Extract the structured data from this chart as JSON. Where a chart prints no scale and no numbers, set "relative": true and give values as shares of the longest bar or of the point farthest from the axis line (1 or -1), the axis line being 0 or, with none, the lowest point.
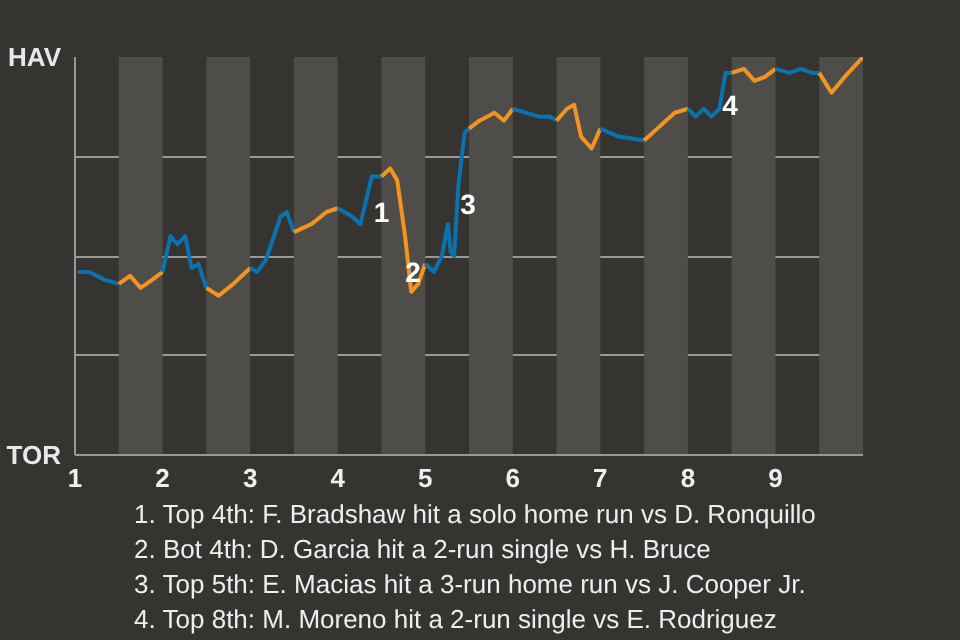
{
  "chart_data": {
    "type": "line",
    "relative": true,
    "xlim": [
      1,
      10
    ],
    "xticks": [
      1,
      2,
      3,
      4,
      5,
      6,
      7,
      8,
      9
    ],
    "grid": "y",
    "marker": "none",
    "line_style": "solid",
    "series": [
      {
        "color": "#0b72b0",
        "x": [
          1.03,
          1.16,
          1.34,
          1.5
        ],
        "values": [
          0.46,
          0.46,
          0.44,
          0.43
        ]
      },
      {
        "color": "#f39320",
        "x": [
          1.5,
          1.63,
          1.75,
          1.88,
          2.0
        ],
        "values": [
          0.43,
          0.45,
          0.42,
          0.44,
          0.46
        ]
      },
      {
        "color": "#0b72b0",
        "x": [
          2.0,
          2.09,
          2.17,
          2.26,
          2.33,
          2.41,
          2.5
        ],
        "values": [
          0.46,
          0.55,
          0.53,
          0.55,
          0.47,
          0.48,
          0.42
        ]
      },
      {
        "color": "#f39320",
        "x": [
          2.5,
          2.64,
          2.81,
          3.0
        ],
        "values": [
          0.42,
          0.4,
          0.43,
          0.47
        ]
      },
      {
        "color": "#0b72b0",
        "x": [
          3.0,
          3.08,
          3.18,
          3.35,
          3.42,
          3.5
        ],
        "values": [
          0.47,
          0.46,
          0.49,
          0.6,
          0.61,
          0.56
        ]
      },
      {
        "color": "#f39320",
        "x": [
          3.5,
          3.7,
          3.87,
          4.0
        ],
        "values": [
          0.56,
          0.58,
          0.61,
          0.62
        ]
      },
      {
        "color": "#0b72b0",
        "x": [
          4.0,
          4.16,
          4.26,
          4.39,
          4.5
        ],
        "values": [
          0.62,
          0.6,
          0.58,
          0.7,
          0.7
        ]
      },
      {
        "color": "#f39320",
        "x": [
          4.5,
          4.6,
          4.68,
          4.77,
          4.84,
          4.92,
          5.0
        ],
        "values": [
          0.7,
          0.72,
          0.69,
          0.55,
          0.41,
          0.43,
          0.48
        ]
      },
      {
        "color": "#0b72b0",
        "x": [
          5.0,
          5.1,
          5.19,
          5.26,
          5.29,
          5.33,
          5.38,
          5.45,
          5.5
        ],
        "values": [
          0.48,
          0.46,
          0.5,
          0.58,
          0.51,
          0.5,
          0.68,
          0.81,
          0.82
        ]
      },
      {
        "color": "#f39320",
        "x": [
          5.5,
          5.62,
          5.79,
          5.9,
          6.0
        ],
        "values": [
          0.82,
          0.84,
          0.86,
          0.84,
          0.87
        ]
      },
      {
        "color": "#0b72b0",
        "x": [
          6.0,
          6.15,
          6.3,
          6.43,
          6.5
        ],
        "values": [
          0.87,
          0.86,
          0.85,
          0.85,
          0.84
        ]
      },
      {
        "color": "#f39320",
        "x": [
          6.5,
          6.62,
          6.7,
          6.78,
          6.9,
          7.0
        ],
        "values": [
          0.84,
          0.87,
          0.88,
          0.8,
          0.77,
          0.82
        ]
      },
      {
        "color": "#0b72b0",
        "x": [
          7.0,
          7.21,
          7.5
        ],
        "values": [
          0.82,
          0.8,
          0.79
        ]
      },
      {
        "color": "#f39320",
        "x": [
          7.5,
          7.65,
          7.85,
          8.0
        ],
        "values": [
          0.79,
          0.82,
          0.86,
          0.87
        ]
      },
      {
        "color": "#0b72b0",
        "x": [
          8.0,
          8.09,
          8.18,
          8.27,
          8.36,
          8.43,
          8.5
        ],
        "values": [
          0.87,
          0.85,
          0.87,
          0.85,
          0.87,
          0.96,
          0.96
        ]
      },
      {
        "color": "#f39320",
        "x": [
          8.5,
          8.64,
          8.76,
          8.88,
          9.0
        ],
        "values": [
          0.96,
          0.97,
          0.94,
          0.95,
          0.97
        ]
      },
      {
        "color": "#0b72b0",
        "x": [
          9.0,
          9.16,
          9.29,
          9.42,
          9.5
        ],
        "values": [
          0.97,
          0.96,
          0.97,
          0.96,
          0.96
        ]
      },
      {
        "color": "#f39320",
        "x": [
          9.5,
          9.64,
          9.79,
          10.0
        ],
        "values": [
          0.96,
          0.91,
          0.95,
          1.0
        ]
      }
    ],
    "bands": [
      {
        "axis": "x",
        "from": 1.5,
        "to": 2,
        "color": "#4f4d4a"
      },
      {
        "axis": "x",
        "from": 2.5,
        "to": 3,
        "color": "#4f4d4a"
      },
      {
        "axis": "x",
        "from": 3.5,
        "to": 4,
        "color": "#4f4d4a"
      },
      {
        "axis": "x",
        "from": 4.5,
        "to": 5,
        "color": "#4f4d4a"
      },
      {
        "axis": "x",
        "from": 5.5,
        "to": 6,
        "color": "#4f4d4a"
      },
      {
        "axis": "x",
        "from": 6.5,
        "to": 7,
        "color": "#4f4d4a"
      },
      {
        "axis": "x",
        "from": 7.5,
        "to": 8,
        "color": "#4f4d4a"
      },
      {
        "axis": "x",
        "from": 8.5,
        "to": 9,
        "color": "#4f4d4a"
      },
      {
        "axis": "x",
        "from": 9.5,
        "to": 10,
        "color": "#4f4d4a"
      }
    ],
    "annotations": [
      "HAV",
      "TOR",
      {
        "text": "1",
        "x": 4.5,
        "y": 0.61
      },
      {
        "text": "2",
        "x": 4.86,
        "y": 0.46
      },
      {
        "text": "3",
        "x": 5.49,
        "y": 0.63
      },
      {
        "text": "4",
        "x": 8.48,
        "y": 0.88
      },
      "1. Top 4th: F. Bradshaw hit a solo home run vs D. Ronquillo",
      "2. Bot 4th: D. Garcia hit a 2-run single vs H. Bruce",
      "3. Top 5th: E. Macias hit a 3-run home run vs J. Cooper Jr.",
      "4. Top 8th: M. Moreno hit a 2-run single vs E. Rodriguez"
    ]
  }
}
